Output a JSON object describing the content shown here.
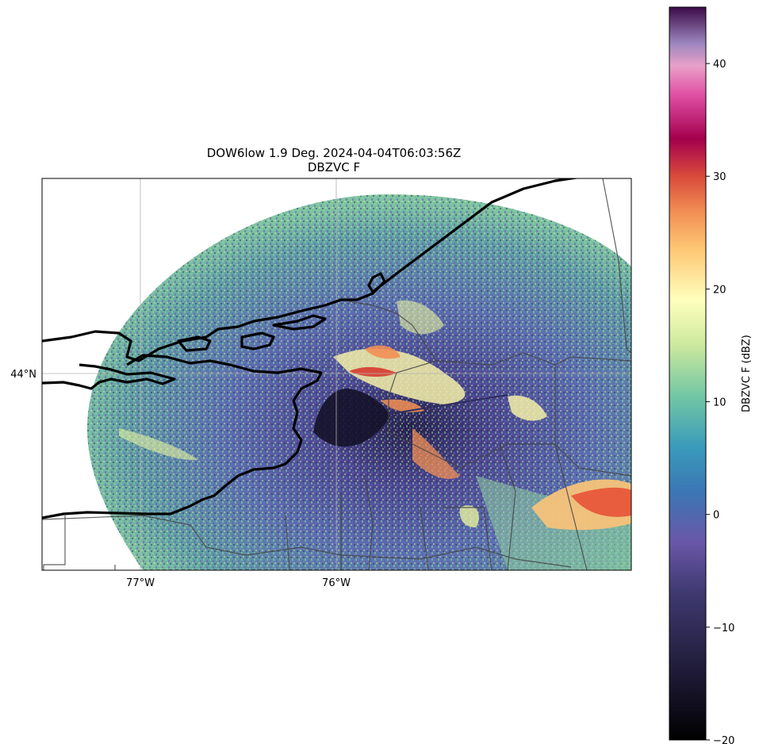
{
  "title": {
    "line1": "DOW6low 1.9 Deg. 2024-04-04T06:03:56Z",
    "line2": "DBZVC F"
  },
  "map": {
    "x_ticks": [
      "77°W",
      "76°W"
    ],
    "y_ticks": [
      "44°N"
    ],
    "gridlines": true
  },
  "colorbar": {
    "label": "DBZVC F (dBZ)",
    "colormap": "spectral_r",
    "ticks": [
      "40",
      "30",
      "20",
      "10",
      "0",
      "−10",
      "−20"
    ],
    "tick_values": [
      40,
      30,
      20,
      10,
      0,
      -10,
      -20
    ],
    "range": [
      -20,
      45
    ]
  },
  "chart_data": {
    "type": "heatmap",
    "title": "DOW6low 1.9 Deg. 2024-04-04T06:03:56Z",
    "subtitle": "DBZVC F",
    "xlabel": "",
    "ylabel": "",
    "x_ticks": [
      "77°W",
      "76°W"
    ],
    "y_ticks": [
      "44°N"
    ],
    "colorbar_label": "DBZVC F (dBZ)",
    "colorbar_range": [
      -20,
      45
    ],
    "colorbar_ticks": [
      -20,
      -10,
      0,
      10,
      20,
      30,
      40
    ],
    "grid": true
  }
}
